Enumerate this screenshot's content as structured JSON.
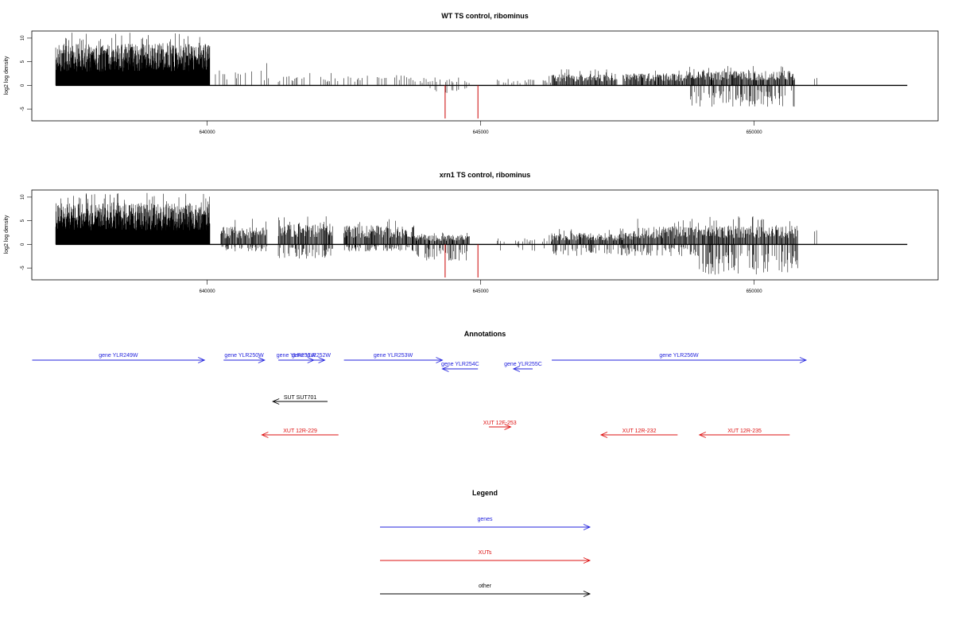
{
  "chart_data": [
    {
      "type": "bar",
      "title": "WT TS control, ribominus",
      "ylabel": "log2 log density",
      "xlabel": "",
      "x_ticks": [
        "640000",
        "645000",
        "650000"
      ],
      "y_ticks": [
        "-5",
        "0",
        "5",
        "10"
      ],
      "xlim": [
        637200,
        653000
      ],
      "ylim": [
        -7.5,
        11.5
      ],
      "colors": {
        "positive": "#000000",
        "negative_marker": "#cc0000"
      },
      "segments": [
        {
          "start": 637230,
          "end": 640050,
          "amp": 6.5,
          "max": 11.2,
          "density": "dense"
        },
        {
          "start": 640150,
          "end": 641200,
          "amp": 2.4,
          "max": 6.0,
          "density": "sparse"
        },
        {
          "start": 641300,
          "end": 642400,
          "amp": 1.5,
          "max": 2.8,
          "density": "sparse"
        },
        {
          "start": 642500,
          "end": 643800,
          "amp": 1.6,
          "max": 2.5,
          "density": "sparse"
        },
        {
          "start": 643800,
          "end": 644800,
          "amp": 1.0,
          "max": 2.0,
          "density": "sparse",
          "negAmp": 1.6
        },
        {
          "start": 645300,
          "end": 646300,
          "amp": 1.0,
          "max": 2.0,
          "density": "sparse"
        },
        {
          "start": 646300,
          "end": 647500,
          "amp": 1.8,
          "max": 3.5,
          "density": "medium"
        },
        {
          "start": 647600,
          "end": 648800,
          "amp": 1.9,
          "max": 3.2,
          "density": "medium"
        },
        {
          "start": 648800,
          "end": 650750,
          "amp": 2.3,
          "max": 4.3,
          "density": "medium",
          "negAmp": 4.5
        },
        {
          "start": 651100,
          "end": 651150,
          "amp": 2.2,
          "max": 4.5,
          "density": "sparse"
        }
      ],
      "red_marks": [
        {
          "x": 644350,
          "value": -7.0
        },
        {
          "x": 644950,
          "value": -7.0
        }
      ]
    },
    {
      "type": "bar",
      "title": "xrn1 TS control, ribominus",
      "ylabel": "log2 log density",
      "xlabel": "",
      "x_ticks": [
        "640000",
        "645000",
        "650000"
      ],
      "y_ticks": [
        "-5",
        "0",
        "5",
        "10"
      ],
      "xlim": [
        637200,
        653000
      ],
      "ylim": [
        -7.5,
        11.5
      ],
      "colors": {
        "positive": "#000000",
        "negative_marker": "#cc0000"
      },
      "segments": [
        {
          "start": 637230,
          "end": 640050,
          "amp": 6.5,
          "max": 11.0,
          "density": "dense"
        },
        {
          "start": 640250,
          "end": 641100,
          "amp": 2.8,
          "max": 5.5,
          "density": "medium",
          "negAmp": 1.5
        },
        {
          "start": 641300,
          "end": 642300,
          "amp": 3.4,
          "max": 6.3,
          "density": "medium",
          "negAmp": 3.0
        },
        {
          "start": 642500,
          "end": 643800,
          "amp": 3.0,
          "max": 5.5,
          "density": "medium",
          "negAmp": 1.5
        },
        {
          "start": 643800,
          "end": 644800,
          "amp": 1.5,
          "max": 2.5,
          "density": "medium",
          "negAmp": 3.5
        },
        {
          "start": 645300,
          "end": 646300,
          "amp": 1.0,
          "max": 2.0,
          "density": "sparse",
          "negAmp": 1.5
        },
        {
          "start": 646300,
          "end": 647800,
          "amp": 1.8,
          "max": 3.5,
          "density": "medium",
          "negAmp": 2.5
        },
        {
          "start": 647800,
          "end": 649000,
          "amp": 2.8,
          "max": 5.5,
          "density": "medium",
          "negAmp": 2.5
        },
        {
          "start": 649000,
          "end": 650800,
          "amp": 3.0,
          "max": 6.5,
          "density": "medium",
          "negAmp": 6.5
        },
        {
          "start": 651100,
          "end": 651150,
          "amp": 2.5,
          "max": 4.0,
          "density": "sparse"
        }
      ],
      "red_marks": [
        {
          "x": 644350,
          "value": -7.0
        },
        {
          "x": 644950,
          "value": -7.0
        }
      ]
    }
  ],
  "annotations": {
    "title": "Annotations",
    "features": [
      {
        "label": "gene YLR249W",
        "start": 636800,
        "end": 639950,
        "dir": "+",
        "type": "gene",
        "row": 0
      },
      {
        "label": "gene YLR250W",
        "start": 640300,
        "end": 641050,
        "dir": "+",
        "type": "gene",
        "row": 0
      },
      {
        "label": "gene YLR251W",
        "start": 641300,
        "end": 641950,
        "dir": "+",
        "type": "gene",
        "row": 0
      },
      {
        "label": "gene YLR252W",
        "start": 641650,
        "end": 642150,
        "dir": "+",
        "type": "gene",
        "row": 0
      },
      {
        "label": "gene YLR253W",
        "start": 642500,
        "end": 644300,
        "dir": "+",
        "type": "gene",
        "row": 0
      },
      {
        "label": "gene YLR254C",
        "start": 644300,
        "end": 644950,
        "dir": "-",
        "type": "gene",
        "row": 1
      },
      {
        "label": "gene YLR255C",
        "start": 645600,
        "end": 645950,
        "dir": "-",
        "type": "gene",
        "row": 1
      },
      {
        "label": "gene YLR256W",
        "start": 646300,
        "end": 650950,
        "dir": "+",
        "type": "gene",
        "row": 0
      },
      {
        "label": "SUT SUT701",
        "start": 641200,
        "end": 642200,
        "dir": "-",
        "type": "other",
        "row": 2
      },
      {
        "label": "XUT 12R-229",
        "start": 641000,
        "end": 642400,
        "dir": "-",
        "type": "xut",
        "row": 4
      },
      {
        "label": "XUT 12F-253",
        "start": 645150,
        "end": 645550,
        "dir": "+",
        "type": "xut",
        "row": 3
      },
      {
        "label": "XUT 12R-232",
        "start": 647200,
        "end": 648600,
        "dir": "-",
        "type": "xut",
        "row": 4
      },
      {
        "label": "XUT 12R-235",
        "start": 649000,
        "end": 650650,
        "dir": "-",
        "type": "xut",
        "row": 4
      }
    ],
    "colors": {
      "gene": "#2222dd",
      "xut": "#dd1111",
      "other": "#000000"
    }
  },
  "legend": {
    "title": "Legend",
    "items": [
      {
        "label": "genes",
        "type": "gene"
      },
      {
        "label": "XUTs",
        "type": "xut"
      },
      {
        "label": "other",
        "type": "other"
      }
    ]
  }
}
